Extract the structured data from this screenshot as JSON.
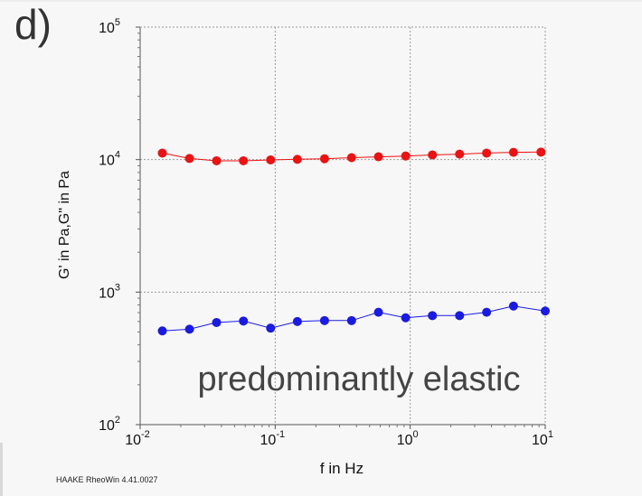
{
  "panel_label": "d)",
  "footer": "HAAKE RheoWin 4.41.0027",
  "annotation": "predominantly elastic",
  "colors": {
    "series_storage": "#ee1111",
    "series_loss": "#1a1ae6",
    "background": "#f7f7f7",
    "grid": "#9a9a9a"
  },
  "chart_data": {
    "type": "line",
    "title": "",
    "xlabel": "f in Hz",
    "ylabel": "G' in Pa,G\" in Pa",
    "x_scale": "log",
    "y_scale": "log",
    "xlim": [
      0.01,
      10
    ],
    "ylim": [
      100,
      100000
    ],
    "grid": true,
    "x_ticks": [
      {
        "base": "10",
        "exp": "-2"
      },
      {
        "base": "10",
        "exp": "-1"
      },
      {
        "base": "10",
        "exp": "0"
      },
      {
        "base": "10",
        "exp": "1"
      }
    ],
    "y_ticks": [
      {
        "base": "10",
        "exp": "2"
      },
      {
        "base": "10",
        "exp": "3"
      },
      {
        "base": "10",
        "exp": "4"
      },
      {
        "base": "10",
        "exp": "5"
      }
    ],
    "series": [
      {
        "color": "#ee1111",
        "points": [
          [
            0.0146,
            11200
          ],
          [
            0.0232,
            10200
          ],
          [
            0.0368,
            9800
          ],
          [
            0.0582,
            9800
          ],
          [
            0.0925,
            9950
          ],
          [
            0.146,
            10050
          ],
          [
            0.232,
            10150
          ],
          [
            0.368,
            10350
          ],
          [
            0.582,
            10500
          ],
          [
            0.925,
            10650
          ],
          [
            1.46,
            10850
          ],
          [
            2.32,
            11000
          ],
          [
            3.68,
            11200
          ],
          [
            5.82,
            11350
          ],
          [
            9.3,
            11400
          ]
        ]
      },
      {
        "color": "#1a1ae6",
        "points": [
          [
            0.0146,
            510
          ],
          [
            0.0232,
            525
          ],
          [
            0.0368,
            590
          ],
          [
            0.0582,
            605
          ],
          [
            0.0925,
            535
          ],
          [
            0.146,
            600
          ],
          [
            0.232,
            610
          ],
          [
            0.368,
            610
          ],
          [
            0.582,
            705
          ],
          [
            0.925,
            640
          ],
          [
            1.46,
            665
          ],
          [
            2.32,
            665
          ],
          [
            3.68,
            705
          ],
          [
            5.82,
            785
          ],
          [
            10,
            720
          ]
        ]
      }
    ]
  }
}
